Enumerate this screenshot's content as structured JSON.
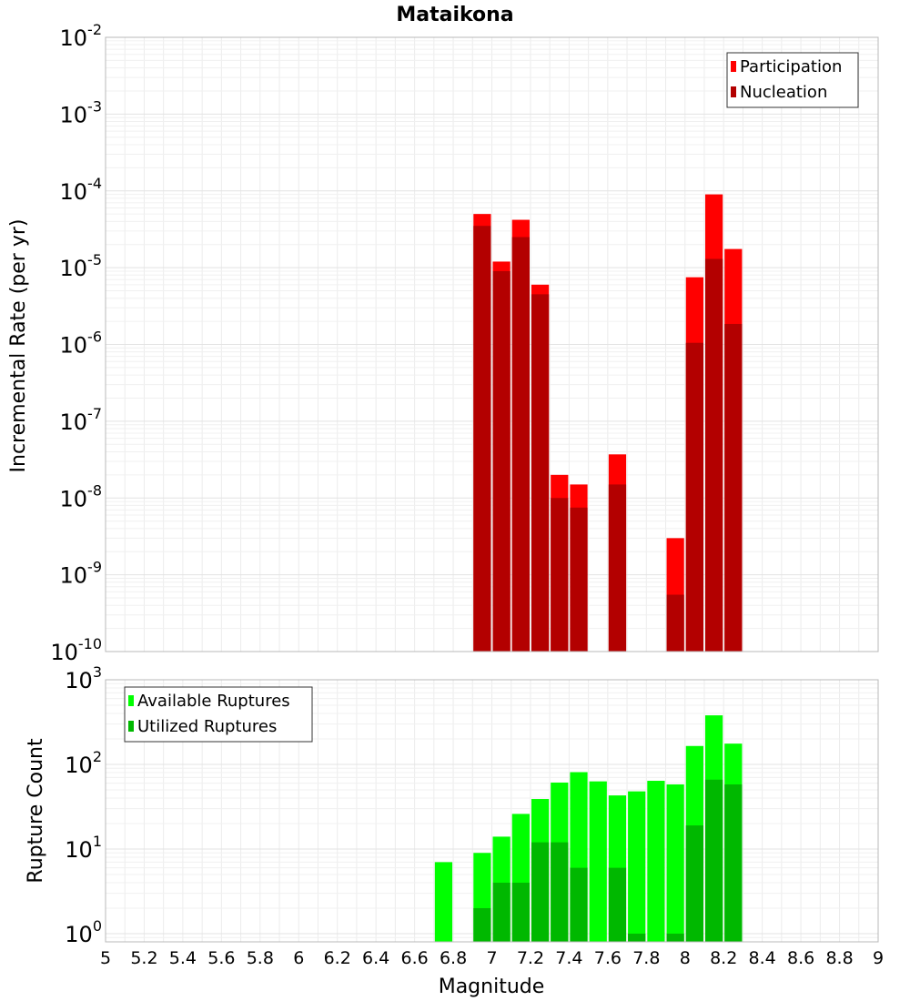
{
  "chart_data": [
    {
      "type": "bar",
      "title": "Mataikona",
      "xlabel": "",
      "ylabel": "Incremental Rate (per yr)",
      "yscale": "log",
      "ylim": [
        1e-10,
        0.01
      ],
      "xlim": [
        5,
        9
      ],
      "ytick_base": "10",
      "ytick_exponents": [
        "-10",
        "-9",
        "-8",
        "-7",
        "-6",
        "-5",
        "-4",
        "-3",
        "-2"
      ],
      "legend_position": "top-right",
      "grid": true,
      "series": [
        {
          "name": "Participation",
          "color": "#ff0000",
          "x": [
            6.95,
            7.05,
            7.15,
            7.25,
            7.35,
            7.45,
            7.65,
            7.95,
            8.05,
            8.15,
            8.25
          ],
          "values": [
            5e-05,
            1.2e-05,
            4.2e-05,
            6e-06,
            2e-08,
            1.5e-08,
            3.7e-08,
            3e-09,
            7.5e-06,
            9e-05,
            1.75e-05
          ]
        },
        {
          "name": "Nucleation",
          "color": "#b30000",
          "x": [
            6.95,
            7.05,
            7.15,
            7.25,
            7.35,
            7.45,
            7.65,
            7.95,
            8.05,
            8.15,
            8.25
          ],
          "values": [
            3.5e-05,
            9e-06,
            2.5e-05,
            4.5e-06,
            1e-08,
            7.5e-09,
            1.5e-08,
            5.5e-10,
            1.05e-06,
            1.3e-05,
            1.85e-06
          ]
        }
      ]
    },
    {
      "type": "bar",
      "title": "",
      "xlabel": "Magnitude",
      "ylabel": "Rupture Count",
      "yscale": "log",
      "ylim": [
        0.8,
        1000
      ],
      "xlim": [
        5,
        9
      ],
      "ytick_base": "10",
      "ytick_exponents": [
        "0",
        "1",
        "2",
        "3"
      ],
      "xticks": [
        "5",
        "5.2",
        "5.4",
        "5.6",
        "5.8",
        "6",
        "6.2",
        "6.4",
        "6.6",
        "6.8",
        "7",
        "7.2",
        "7.4",
        "7.6",
        "7.8",
        "8",
        "8.2",
        "8.4",
        "8.6",
        "8.8",
        "9"
      ],
      "legend_position": "top-left",
      "grid": true,
      "series": [
        {
          "name": "Available Ruptures",
          "color": "#00ff00",
          "x": [
            6.75,
            6.95,
            7.05,
            7.15,
            7.25,
            7.35,
            7.45,
            7.55,
            7.65,
            7.75,
            7.85,
            7.95,
            8.05,
            8.15,
            8.25
          ],
          "values": [
            7,
            9,
            14,
            26,
            39,
            61,
            81,
            63,
            43,
            48,
            64,
            58,
            165,
            380,
            176
          ]
        },
        {
          "name": "Utilized Ruptures",
          "color": "#00b800",
          "x": [
            6.75,
            6.95,
            7.05,
            7.15,
            7.25,
            7.35,
            7.45,
            7.55,
            7.65,
            7.75,
            7.85,
            7.95,
            8.05,
            8.15,
            8.25
          ],
          "values": [
            0,
            2,
            4,
            4,
            12,
            12,
            6,
            0,
            6,
            1,
            0,
            1,
            19,
            66,
            58
          ]
        }
      ]
    }
  ]
}
